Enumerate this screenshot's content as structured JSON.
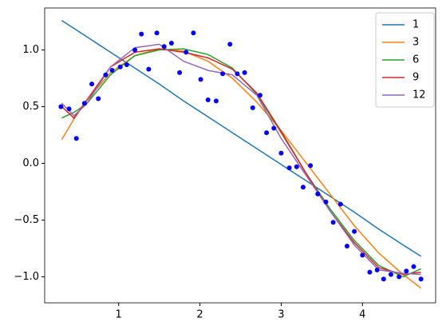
{
  "chart_data": {
    "type": "line",
    "xlim": [
      0.09,
      4.9
    ],
    "ylim": [
      -1.23,
      1.37
    ],
    "xticks": [
      1,
      2,
      3,
      4
    ],
    "yticks": [
      {
        "value": -1.0,
        "label": "−1.0"
      },
      {
        "value": -0.5,
        "label": "−0.5"
      },
      {
        "value": 0.0,
        "label": "0.0"
      },
      0.5,
      {
        "value": 1.0,
        "label": "1.0"
      }
    ],
    "legend": "upper right",
    "x": [
      0.3,
      0.45,
      0.6,
      0.9,
      1.2,
      1.5,
      1.8,
      2.1,
      2.4,
      2.7,
      3.0,
      3.3,
      3.6,
      3.9,
      4.2,
      4.5,
      4.72
    ],
    "series": [
      {
        "name": "1",
        "color": "#1f77b4",
        "values": [
          1.26,
          1.19,
          1.12,
          0.98,
          0.84,
          0.7,
          0.55,
          0.41,
          0.27,
          0.13,
          -0.01,
          -0.15,
          -0.29,
          -0.43,
          -0.58,
          -0.72,
          -0.82
        ]
      },
      {
        "name": "3",
        "color": "#ff7f0e",
        "values": [
          0.21,
          0.39,
          0.55,
          0.8,
          0.95,
          1.01,
          0.99,
          0.9,
          0.75,
          0.54,
          0.29,
          0.01,
          -0.27,
          -0.55,
          -0.79,
          -0.98,
          -1.1
        ]
      },
      {
        "name": "6",
        "color": "#2ca02c",
        "values": [
          0.4,
          0.45,
          0.52,
          0.78,
          0.95,
          1.0,
          1.01,
          0.96,
          0.84,
          0.61,
          0.27,
          -0.08,
          -0.4,
          -0.68,
          -0.9,
          -1.0,
          -0.93
        ]
      },
      {
        "name": "9",
        "color": "#d62728",
        "values": [
          0.5,
          0.4,
          0.55,
          0.85,
          0.98,
          1.01,
          0.98,
          0.93,
          0.83,
          0.62,
          0.28,
          -0.08,
          -0.42,
          -0.7,
          -0.92,
          -0.98,
          -0.96
        ]
      },
      {
        "name": "12",
        "color": "#9467bd",
        "values": [
          0.53,
          0.42,
          0.52,
          0.85,
          1.02,
          1.05,
          0.9,
          0.82,
          0.78,
          0.6,
          0.22,
          -0.1,
          -0.42,
          -0.72,
          -0.94,
          -0.97,
          -0.98
        ]
      }
    ],
    "scatter": {
      "color": "blue",
      "x": [
        0.29,
        0.39,
        0.48,
        0.58,
        0.67,
        0.75,
        0.84,
        0.92,
        1.02,
        1.1,
        1.2,
        1.28,
        1.37,
        1.47,
        1.56,
        1.65,
        1.75,
        1.83,
        1.92,
        2.01,
        2.1,
        2.2,
        2.28,
        2.37,
        2.46,
        2.55,
        2.65,
        2.74,
        2.82,
        2.91,
        3.0,
        3.1,
        3.19,
        3.27,
        3.36,
        3.45,
        3.55,
        3.64,
        3.73,
        3.81,
        3.9,
        4.0,
        4.09,
        4.18,
        4.26,
        4.35,
        4.45,
        4.54,
        4.63,
        4.72
      ],
      "y": [
        0.5,
        0.48,
        0.22,
        0.53,
        0.7,
        0.57,
        0.78,
        0.82,
        0.85,
        0.87,
        1.0,
        1.14,
        0.83,
        1.15,
        1.03,
        1.06,
        0.8,
        0.98,
        1.15,
        0.74,
        0.56,
        0.55,
        0.79,
        1.05,
        0.79,
        0.8,
        0.49,
        0.6,
        0.27,
        0.31,
        0.09,
        -0.04,
        -0.03,
        -0.21,
        -0.02,
        -0.27,
        -0.34,
        -0.52,
        -0.36,
        -0.73,
        -0.6,
        -0.81,
        -0.96,
        -0.94,
        -1.02,
        -0.98,
        -1.0,
        -0.95,
        -0.91,
        -1.02
      ]
    }
  }
}
